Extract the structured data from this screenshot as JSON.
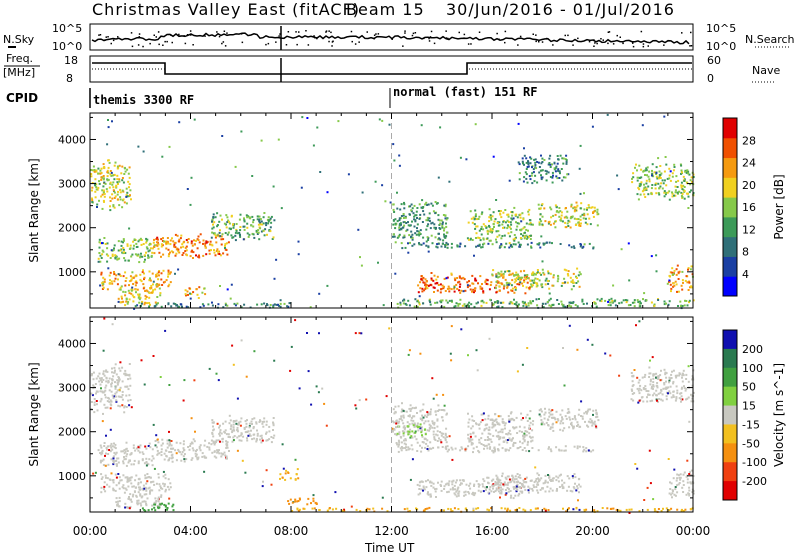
{
  "header": {
    "title": "Christmas Valley East (fitACF)",
    "beam": "Beam 15",
    "date_range": "30/Jun/2016 - 01/Jul/2016"
  },
  "top_panels": {
    "nsky_label": "N.Sky",
    "nsearch_label": "N.Search",
    "nave_label": "Nave",
    "freq_label_1": "Freq.",
    "freq_label_2": "[MHz]",
    "cpid_label": "CPID",
    "nsky_ticks": [
      "10^5",
      "10^0"
    ],
    "nsearch_ticks": [
      "10^5",
      "10^0"
    ],
    "freq_ticks": [
      "18",
      "8"
    ],
    "nave_ticks": [
      "60",
      "0"
    ],
    "cpid_segments": [
      {
        "label": "themis 3300 RF",
        "start_hour": 0
      },
      {
        "label": "normal (fast) 151 RF",
        "start_hour": 12
      }
    ]
  },
  "chart_data": [
    {
      "type": "heatmap",
      "name": "power",
      "ylabel": "Slant Range [km]",
      "xlabel": "Time UT",
      "x_ticks": [
        "00:00",
        "04:00",
        "08:00",
        "12:00",
        "16:00",
        "20:00",
        "00:00"
      ],
      "x_tick_hours": [
        0,
        4,
        8,
        12,
        16,
        20,
        24
      ],
      "y_ticks": [
        1000,
        2000,
        3000,
        4000
      ],
      "ylim": [
        180,
        4600
      ],
      "xlim": [
        0,
        24
      ],
      "colorbar": {
        "label": "Power [dB]",
        "ticks": [
          4,
          8,
          12,
          16,
          20,
          24,
          28
        ],
        "range": [
          0,
          32
        ],
        "colors": [
          "#0000ff",
          "#1a3fa3",
          "#2f6f78",
          "#3c9a58",
          "#86c94a",
          "#f0d020",
          "#f59a10",
          "#f05000",
          "#e00000"
        ]
      },
      "patches": [
        {
          "t": [
            0.0,
            1.6
          ],
          "r": [
            2400,
            3600
          ],
          "level": 18
        },
        {
          "t": [
            0.3,
            2.5
          ],
          "r": [
            1200,
            1800
          ],
          "level": 16
        },
        {
          "t": [
            0.4,
            3.2
          ],
          "r": [
            600,
            1100
          ],
          "level": 22
        },
        {
          "t": [
            1.0,
            2.8
          ],
          "r": [
            250,
            700
          ],
          "level": 20
        },
        {
          "t": [
            2.5,
            5.5
          ],
          "r": [
            1300,
            1900
          ],
          "level": 24
        },
        {
          "t": [
            4.8,
            7.3
          ],
          "r": [
            1700,
            2400
          ],
          "level": 14
        },
        {
          "t": [
            3.6,
            4.6
          ],
          "r": [
            400,
            700
          ],
          "level": 22
        },
        {
          "t": [
            1.5,
            8.0
          ],
          "r": [
            200,
            330
          ],
          "level": 10
        },
        {
          "t": [
            12.0,
            14.2
          ],
          "r": [
            1600,
            2700
          ],
          "level": 12
        },
        {
          "t": [
            12.3,
            20.0
          ],
          "r": [
            1550,
            1700
          ],
          "level": 10
        },
        {
          "t": [
            13.0,
            17.5
          ],
          "r": [
            500,
            1000
          ],
          "level": 26
        },
        {
          "t": [
            16.0,
            19.5
          ],
          "r": [
            600,
            1100
          ],
          "level": 18
        },
        {
          "t": [
            15.0,
            17.6
          ],
          "r": [
            1600,
            2500
          ],
          "level": 16
        },
        {
          "t": [
            17.8,
            20.2
          ],
          "r": [
            2000,
            2600
          ],
          "level": 18
        },
        {
          "t": [
            21.5,
            24.0
          ],
          "r": [
            2600,
            3500
          ],
          "level": 16
        },
        {
          "t": [
            23.0,
            24.0
          ],
          "r": [
            500,
            1200
          ],
          "level": 22
        },
        {
          "t": [
            12.0,
            24.0
          ],
          "r": [
            200,
            420
          ],
          "level": 14
        },
        {
          "t": [
            17.0,
            19.0
          ],
          "r": [
            3000,
            3700
          ],
          "level": 10
        }
      ]
    },
    {
      "type": "heatmap",
      "name": "velocity",
      "ylabel": "Slant Range [km]",
      "xlabel": "Time UT",
      "x_ticks": [
        "00:00",
        "04:00",
        "08:00",
        "12:00",
        "16:00",
        "20:00",
        "00:00"
      ],
      "x_tick_hours": [
        0,
        4,
        8,
        12,
        16,
        20,
        24
      ],
      "y_ticks": [
        1000,
        2000,
        3000,
        4000
      ],
      "ylim": [
        180,
        4600
      ],
      "xlim": [
        0,
        24
      ],
      "colorbar": {
        "label": "Velocity [m s^-1]",
        "ticks": [
          "200",
          "100",
          "50",
          "15",
          "-15",
          "-50",
          "-100",
          "-200"
        ],
        "colors": [
          "#1010b0",
          "#2a7a50",
          "#40a040",
          "#80d040",
          "#c8c8c0",
          "#f2c020",
          "#f59010",
          "#f04010",
          "#e00000"
        ]
      },
      "patches": [
        {
          "t": [
            0.0,
            1.6
          ],
          "r": [
            2400,
            3600
          ],
          "level": 0
        },
        {
          "t": [
            0.3,
            2.5
          ],
          "r": [
            1200,
            1800
          ],
          "level": 0
        },
        {
          "t": [
            0.4,
            3.2
          ],
          "r": [
            600,
            1100
          ],
          "level": 0
        },
        {
          "t": [
            1.0,
            2.8
          ],
          "r": [
            250,
            700
          ],
          "level": 0
        },
        {
          "t": [
            2.5,
            5.5
          ],
          "r": [
            1300,
            1900
          ],
          "level": 0
        },
        {
          "t": [
            4.8,
            7.3
          ],
          "r": [
            1700,
            2400
          ],
          "level": 0
        },
        {
          "t": [
            2.0,
            3.3
          ],
          "r": [
            220,
            420
          ],
          "level": 40
        },
        {
          "t": [
            7.7,
            9.0
          ],
          "r": [
            350,
            550
          ],
          "level": -60
        },
        {
          "t": [
            7.5,
            8.3
          ],
          "r": [
            900,
            1200
          ],
          "level": -30
        },
        {
          "t": [
            8.0,
            24.0
          ],
          "r": [
            200,
            300
          ],
          "level": -30
        },
        {
          "t": [
            12.0,
            14.2
          ],
          "r": [
            1600,
            2700
          ],
          "level": 0
        },
        {
          "t": [
            12.3,
            20.0
          ],
          "r": [
            1550,
            1700
          ],
          "level": 0
        },
        {
          "t": [
            13.0,
            17.5
          ],
          "r": [
            500,
            1000
          ],
          "level": 0
        },
        {
          "t": [
            16.0,
            19.5
          ],
          "r": [
            600,
            1100
          ],
          "level": 0
        },
        {
          "t": [
            15.0,
            17.6
          ],
          "r": [
            1600,
            2500
          ],
          "level": 0
        },
        {
          "t": [
            17.8,
            20.2
          ],
          "r": [
            2000,
            2600
          ],
          "level": 0
        },
        {
          "t": [
            21.5,
            24.0
          ],
          "r": [
            2600,
            3500
          ],
          "level": 0
        },
        {
          "t": [
            23.0,
            24.0
          ],
          "r": [
            500,
            1200
          ],
          "level": 0
        },
        {
          "t": [
            12.2,
            13.5
          ],
          "r": [
            1900,
            2200
          ],
          "level": 20
        }
      ]
    }
  ]
}
